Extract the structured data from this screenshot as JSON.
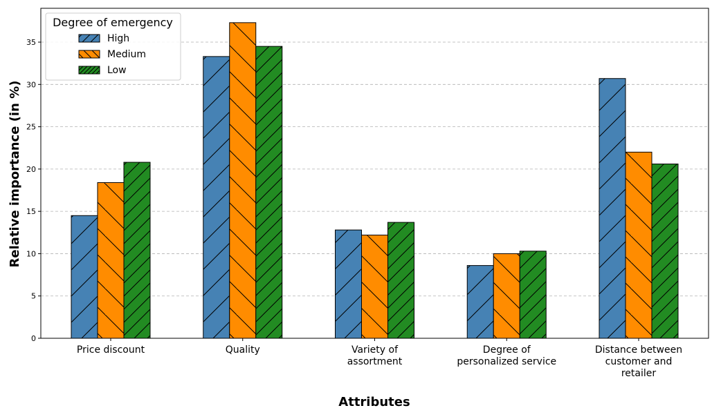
{
  "chart_data": {
    "type": "bar",
    "categories": [
      [
        "Price discount"
      ],
      [
        "Quality"
      ],
      [
        "Variety of",
        "assortment"
      ],
      [
        "Degree of",
        "personalized service"
      ],
      [
        "Distance between",
        "customer and",
        "retailer"
      ]
    ],
    "series": [
      {
        "name": "High",
        "color": "#4682b4",
        "hatch": "forward-slash",
        "values": [
          14.5,
          33.3,
          12.8,
          8.6,
          30.7
        ]
      },
      {
        "name": "Medium",
        "color": "#ff8c00",
        "hatch": "back-slash",
        "values": [
          18.4,
          37.3,
          12.2,
          10.0,
          22.0
        ]
      },
      {
        "name": "Low",
        "color": "#228b22",
        "hatch": "dense-forward-slash",
        "values": [
          20.8,
          34.5,
          13.7,
          10.3,
          20.6
        ]
      }
    ],
    "title": "",
    "xlabel": "Attributes",
    "ylabel": "Relative importance (in %)",
    "ylim": [
      0,
      39
    ],
    "yticks": [
      0,
      5,
      10,
      15,
      20,
      25,
      30,
      35
    ],
    "grid": "horizontal dashed",
    "legend": {
      "title": "Degree of emergency",
      "position": "top-left"
    }
  }
}
